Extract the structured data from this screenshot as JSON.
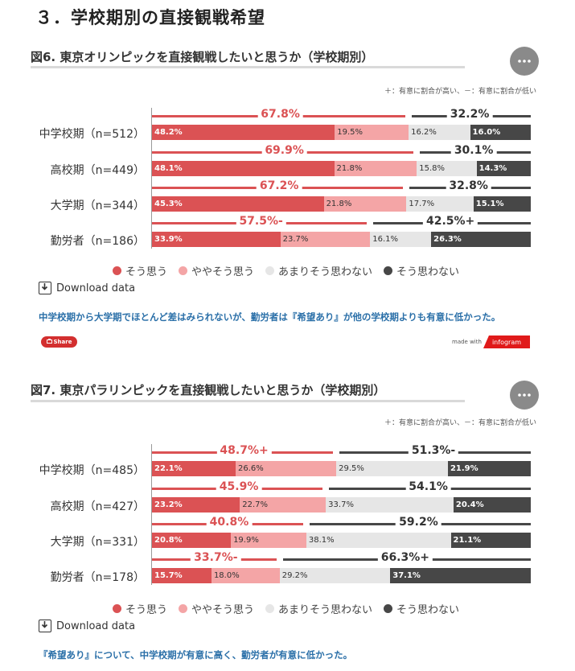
{
  "section_title": "３．学校期別の直接観戦希望",
  "ui": {
    "download_label": "Download data",
    "share_label": "Share",
    "made_with": "made with",
    "infogram": "infogram"
  },
  "colors": {
    "strong_agree": "#db5254",
    "agree": "#f4a5a6",
    "disagree": "#e6e6e6",
    "strong_disagree": "#474747",
    "caption": "#2a6fa8"
  },
  "charts": [
    {
      "title": "図6. 東京オリンピックを直接観戦したいと思うか（学校期別）",
      "sig_note": "＋：有意に割合が高い、－：有意に割合が低い",
      "caption": "中学校期から大学期でほとんど差はみられないが、勤労者は『希望あり』が他の学校期よりも有意に低かった。",
      "rows": [
        {
          "label": "中学校期（n=512）",
          "pos_label": "67.8%",
          "neg_label": "32.2%"
        },
        {
          "label": "高校期（n=449）",
          "pos_label": "69.9%",
          "neg_label": "30.1%"
        },
        {
          "label": "大学期（n=344）",
          "pos_label": "67.2%",
          "neg_label": "32.8%"
        },
        {
          "label": "勤労者（n=186）",
          "pos_label": "57.5%-",
          "neg_label": "42.5%+"
        }
      ]
    },
    {
      "title": "図7. 東京パラリンピックを直接観戦したいと思うか（学校期別）",
      "sig_note": "＋：有意に割合が高い、－：有意に割合が低い",
      "caption": "『希望あり』について、中学校期が有意に高く、勤労者が有意に低かった。",
      "rows": [
        {
          "label": "中学校期（n=485）",
          "pos_label": "48.7%+",
          "neg_label": "51.3%-"
        },
        {
          "label": "高校期（n=427）",
          "pos_label": "45.9%",
          "neg_label": "54.1%"
        },
        {
          "label": "大学期（n=331）",
          "pos_label": "40.8%",
          "neg_label": "59.2%"
        },
        {
          "label": "勤労者（n=178）",
          "pos_label": "33.7%-",
          "neg_label": "66.3%+"
        }
      ]
    }
  ],
  "chart_data": [
    {
      "type": "bar",
      "stacked": true,
      "orientation": "horizontal",
      "title": "図6. 東京オリンピックを直接観戦したいと思うか（学校期別）",
      "categories": [
        "中学校期（n=512）",
        "高校期（n=449）",
        "大学期（n=344）",
        "勤労者（n=186）"
      ],
      "series": [
        {
          "name": "そう思う",
          "values": [
            48.2,
            48.1,
            45.3,
            33.9
          ]
        },
        {
          "name": "ややそう思う",
          "values": [
            19.5,
            21.8,
            21.8,
            23.7
          ]
        },
        {
          "name": "あまりそう思わない",
          "values": [
            16.2,
            15.8,
            17.7,
            16.1
          ]
        },
        {
          "name": "そう思わない",
          "values": [
            16.0,
            14.3,
            15.1,
            26.3
          ]
        }
      ],
      "xlim": [
        0,
        100
      ],
      "legend": "bottom"
    },
    {
      "type": "bar",
      "stacked": true,
      "orientation": "horizontal",
      "title": "図7. 東京パラリンピックを直接観戦したいと思うか（学校期別）",
      "categories": [
        "中学校期（n=485）",
        "高校期（n=427）",
        "大学期（n=331）",
        "勤労者（n=178）"
      ],
      "series": [
        {
          "name": "そう思う",
          "values": [
            22.1,
            23.2,
            20.8,
            15.7
          ]
        },
        {
          "name": "ややそう思う",
          "values": [
            26.6,
            22.7,
            19.9,
            18.0
          ]
        },
        {
          "name": "あまりそう思わない",
          "values": [
            29.5,
            33.7,
            38.1,
            29.2
          ]
        },
        {
          "name": "そう思わない",
          "values": [
            21.9,
            20.4,
            21.1,
            37.1
          ]
        }
      ],
      "xlim": [
        0,
        100
      ],
      "legend": "bottom"
    }
  ]
}
